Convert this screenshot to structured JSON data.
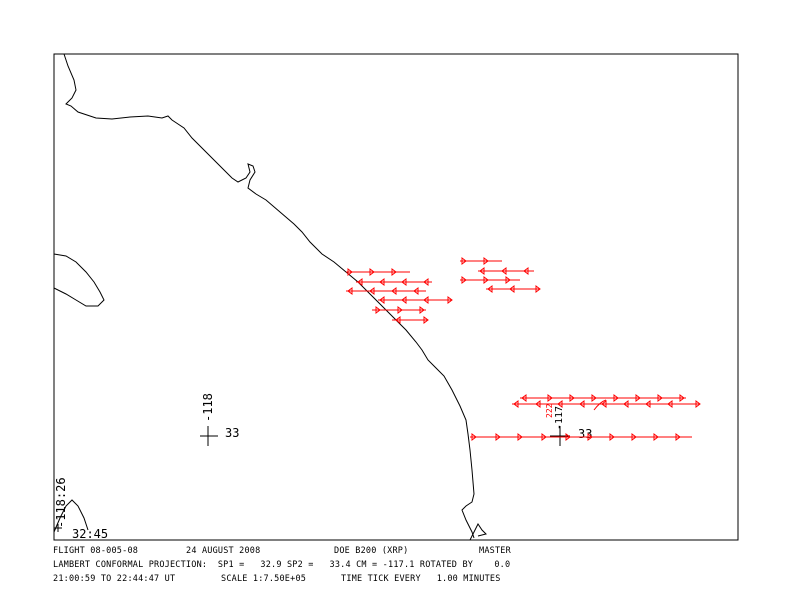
{
  "map": {
    "labels": {
      "lon_tick": "-118",
      "lat_tick_left": "33",
      "lat_tick_right": "33",
      "lon_tick_right": "-117",
      "corner_lon": "-118:26",
      "corner_lat": "32:45",
      "track_annotation": "222"
    }
  },
  "footer": {
    "line1": {
      "flight": "FLIGHT 08-005-08",
      "date": "24 AUGUST 2008",
      "aircraft": "DOE B200 (XRP)",
      "mode": "MASTER"
    },
    "line2": {
      "projection": "LAMBERT CONFORMAL PROJECTION:  SP1 =   32.9 SP2 =   33.4 CM = -117.1 ROTATED BY    0.0"
    },
    "line3": {
      "time_range": "21:00:59 TO 22:44:47 UT",
      "scale": "SCALE 1:7.50E+05",
      "tick": "TIME TICK EVERY   1.00 MINUTES"
    }
  },
  "colors": {
    "track": "#ff0000",
    "coast": "#000000",
    "frame": "#000000"
  }
}
